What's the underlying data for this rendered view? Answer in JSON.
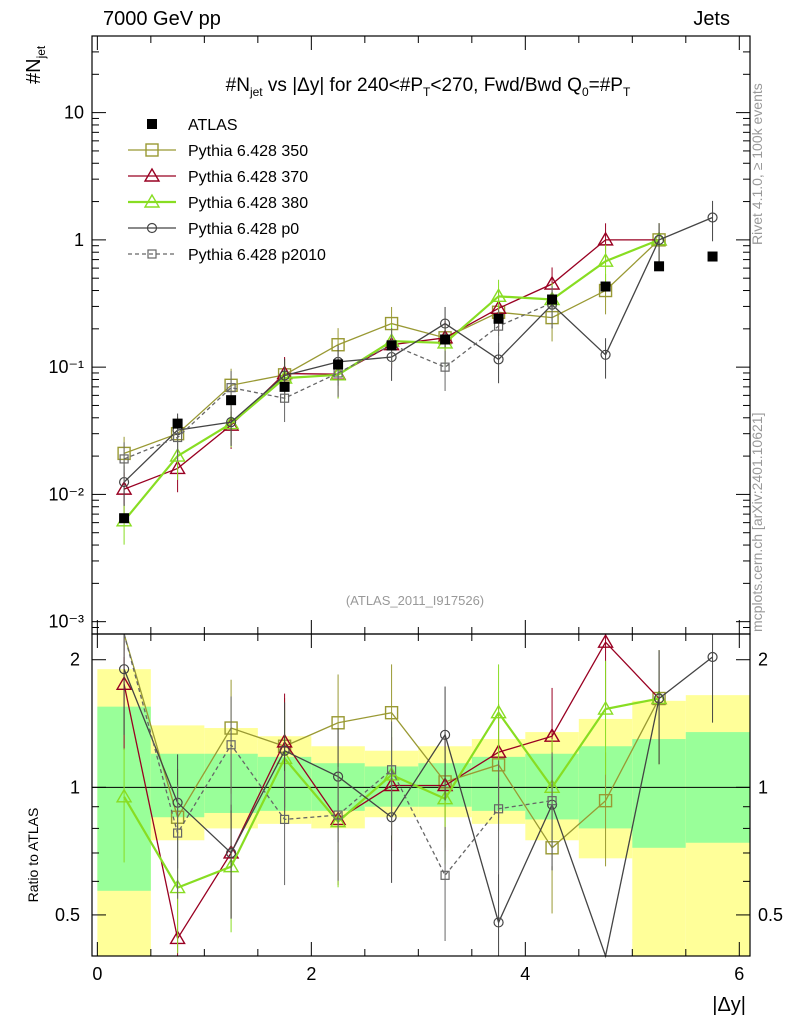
{
  "header": {
    "left": "7000 GeV pp",
    "right": "Jets"
  },
  "side": {
    "rivet": "Rivet 4.1.0, ≥ 100k events",
    "mcplots": "mcplots.cern.ch [arXiv:2401.10621]"
  },
  "chart_data": {
    "type": "scatter",
    "title": "#N_jet vs |Δy| for 240<#P_T<270, Fwd/Bwd Q_0=#P_T",
    "title_parts": {
      "a": "#N",
      "a_sub": "jet",
      "b": " vs |Δy| for 240<#P",
      "b_sub": "T",
      "c": "<270, Fwd/Bwd Q",
      "c_sub": "0",
      "d": "=#P",
      "d_sub": "T"
    },
    "ylabel": "#N_jet",
    "ylabel_main": "#N",
    "ylabel_sub": "jet",
    "ratio_ylabel": "Ratio to ATLAS",
    "xlabel": "|Δy|",
    "analysis_id": "(ATLAS_2011_I917526)",
    "xlim": [
      -0.05,
      6.1
    ],
    "ylim": [
      0.0008,
      40
    ],
    "ratio_ylim": [
      0.4,
      2.3
    ],
    "x_ticks": [
      "0",
      "2",
      "4",
      "6"
    ],
    "y_ticks": [
      "10",
      "1",
      "10⁻¹",
      "10⁻²",
      "10⁻³"
    ],
    "ratio_ticks": [
      "2",
      "1",
      "0.5"
    ],
    "x": [
      0.25,
      0.75,
      1.25,
      1.75,
      2.25,
      2.75,
      3.25,
      3.75,
      4.25,
      4.75,
      5.25,
      5.75
    ],
    "atlas": {
      "name": "ATLAS",
      "values": [
        0.0065,
        0.036,
        0.055,
        0.07,
        0.105,
        0.148,
        0.165,
        0.24,
        0.34,
        0.43,
        0.62,
        0.74
      ]
    },
    "series": [
      {
        "name": "Pythia 6.428 350",
        "color": "#999933",
        "marker": "square",
        "dash": "",
        "values": [
          0.021,
          0.03,
          0.072,
          0.087,
          0.15,
          0.22,
          0.17,
          0.27,
          0.245,
          0.4,
          1.0,
          null
        ]
      },
      {
        "name": "Pythia 6.428 370",
        "color": "#990022",
        "marker": "triangle",
        "dash": "",
        "values": [
          0.011,
          0.016,
          0.035,
          0.089,
          0.088,
          0.15,
          0.17,
          0.29,
          0.45,
          1.0,
          1.0,
          null
        ]
      },
      {
        "name": "Pythia 6.428 380",
        "color": "#88dd22",
        "marker": "triangle",
        "dash": "",
        "values": [
          0.0062,
          0.02,
          0.036,
          0.082,
          0.087,
          0.16,
          0.155,
          0.36,
          0.34,
          0.68,
          1.0,
          null
        ]
      },
      {
        "name": "Pythia 6.428 p0",
        "color": "#444444",
        "marker": "circle",
        "dash": "",
        "values": [
          0.0125,
          0.032,
          0.037,
          0.086,
          0.11,
          0.12,
          0.22,
          0.115,
          0.31,
          0.125,
          1.0,
          1.5
        ]
      },
      {
        "name": "Pythia 6.428 p2010",
        "color": "#666666",
        "marker": "square-small",
        "dash": "4,3",
        "values": [
          0.019,
          0.028,
          0.069,
          0.057,
          0.09,
          0.15,
          0.1,
          0.21,
          0.32,
          null,
          null,
          null
        ]
      }
    ],
    "band_edges": [
      0,
      0.5,
      1.0,
      1.5,
      2.0,
      2.5,
      3.0,
      3.5,
      4.0,
      4.5,
      5.0,
      5.5,
      6.1
    ],
    "band_yellow": [
      [
        0.4,
        1.9
      ],
      [
        0.75,
        1.4
      ],
      [
        0.8,
        1.38
      ],
      [
        0.82,
        1.32
      ],
      [
        0.8,
        1.25
      ],
      [
        0.85,
        1.22
      ],
      [
        0.85,
        1.25
      ],
      [
        0.82,
        1.3
      ],
      [
        0.75,
        1.35
      ],
      [
        0.68,
        1.45
      ],
      [
        0.4,
        1.6
      ],
      [
        0.4,
        1.65
      ]
    ],
    "band_green": [
      [
        0.57,
        1.55
      ],
      [
        0.85,
        1.2
      ],
      [
        0.87,
        1.2
      ],
      [
        0.88,
        1.18
      ],
      [
        0.88,
        1.14
      ],
      [
        0.9,
        1.12
      ],
      [
        0.9,
        1.14
      ],
      [
        0.88,
        1.18
      ],
      [
        0.84,
        1.2
      ],
      [
        0.8,
        1.25
      ],
      [
        0.72,
        1.3
      ],
      [
        0.74,
        1.35
      ]
    ],
    "ratios": [
      [
        3.0,
        0.85,
        1.38,
        1.25,
        1.42,
        1.5,
        1.03,
        1.13,
        0.72,
        0.93,
        1.62,
        null
      ],
      [
        1.75,
        0.44,
        0.7,
        1.28,
        0.84,
        1.01,
        1.01,
        1.21,
        1.32,
        2.2,
        1.62,
        null
      ],
      [
        0.95,
        0.58,
        0.65,
        1.17,
        0.83,
        1.07,
        0.94,
        1.5,
        1.0,
        1.53,
        1.62,
        null
      ],
      [
        1.9,
        0.92,
        0.7,
        1.22,
        1.06,
        0.85,
        1.33,
        0.48,
        0.91,
        0.29,
        1.62,
        2.03
      ],
      [
        2.9,
        0.78,
        1.26,
        0.84,
        0.86,
        1.1,
        0.62,
        0.89,
        0.93,
        null,
        null,
        null
      ]
    ]
  }
}
